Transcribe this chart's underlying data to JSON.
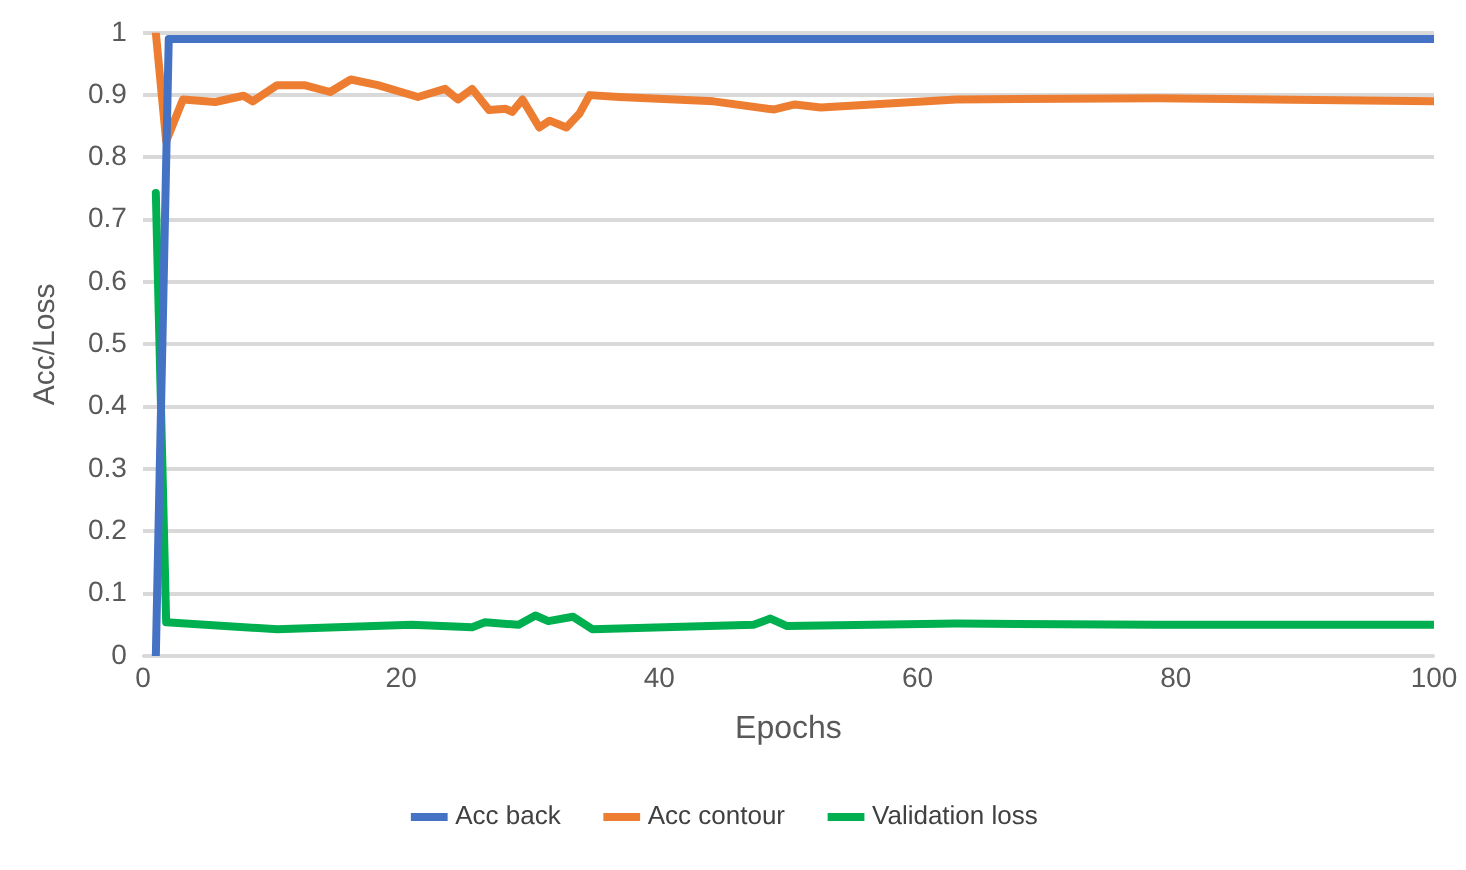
{
  "chart_data": {
    "type": "line",
    "xlabel": "Epochs",
    "ylabel": "Acc/Loss",
    "xlim": [
      0,
      100
    ],
    "xticks": [
      0,
      20,
      40,
      60,
      80,
      100
    ],
    "ylim": [
      0,
      1
    ],
    "yticks": [
      0,
      0.1,
      0.2,
      0.3,
      0.4,
      0.5,
      0.6,
      0.7,
      0.8,
      0.9,
      1
    ],
    "grid": "y",
    "legend": "bottom",
    "marker": "none",
    "line_style": "solid",
    "series": [
      {
        "name": "Acc back",
        "color": "#4472c4",
        "x": [
          1,
          2,
          100
        ],
        "values": [
          0,
          0.99,
          0.99
        ]
      },
      {
        "name": "Acc contour",
        "color": "#ed7d31",
        "x": [
          1,
          1.8,
          3.1,
          5.6,
          7.8,
          8.5,
          10.4,
          12.5,
          14.5,
          16.1,
          18.2,
          21.3,
          23.4,
          24.4,
          25.5,
          26.8,
          28.1,
          28.6,
          29.4,
          30.7,
          31.5,
          32.8,
          33.8,
          34.6,
          36.9,
          44.2,
          48.4,
          48.9,
          50.5,
          52.5,
          63,
          78.6,
          100
        ],
        "values": [
          1,
          0.826,
          0.893,
          0.889,
          0.899,
          0.89,
          0.916,
          0.916,
          0.905,
          0.925,
          0.916,
          0.897,
          0.91,
          0.893,
          0.91,
          0.876,
          0.878,
          0.873,
          0.893,
          0.848,
          0.859,
          0.848,
          0.87,
          0.9,
          0.897,
          0.89,
          0.878,
          0.877,
          0.885,
          0.88,
          0.893,
          0.895,
          0.89
        ]
      },
      {
        "name": "Validation loss",
        "color": "#00b050",
        "x": [
          1,
          1.8,
          10.4,
          20.8,
          25.5,
          26.5,
          29.1,
          30.4,
          31.4,
          33.3,
          34.8,
          47.3,
          48.6,
          49.9,
          63,
          78.6,
          100
        ],
        "values": [
          0.743,
          0.054,
          0.043,
          0.05,
          0.046,
          0.054,
          0.05,
          0.065,
          0.056,
          0.063,
          0.043,
          0.05,
          0.06,
          0.048,
          0.052,
          0.05,
          0.05
        ]
      }
    ]
  }
}
